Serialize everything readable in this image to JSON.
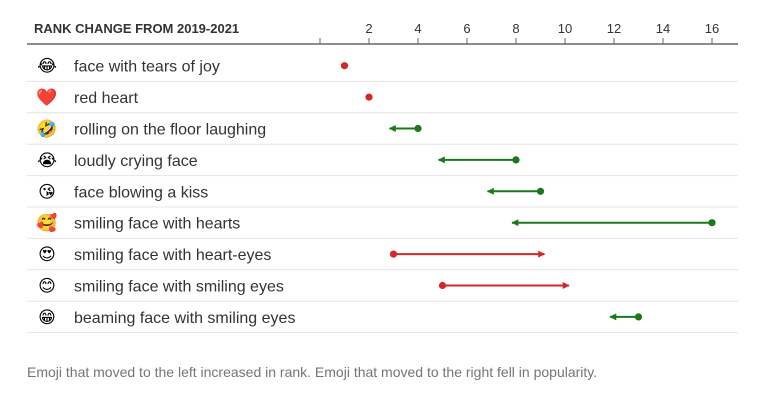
{
  "chart_data": {
    "type": "dumbbell",
    "title": "RANK CHANGE FROM 2019-2021",
    "x_ticks": [
      2,
      4,
      6,
      8,
      10,
      12,
      14,
      16
    ],
    "xlim": [
      0,
      16
    ],
    "grid": false,
    "colors": {
      "increase": "#1a7a1a",
      "decrease": "#d62728"
    },
    "rows": [
      {
        "emoji": "😂",
        "icon": "face-with-tears-of-joy-icon",
        "label": "face with tears of joy",
        "from": 1,
        "to": 1
      },
      {
        "emoji": "❤️",
        "icon": "red-heart-icon",
        "label": "red heart",
        "from": 2,
        "to": 2
      },
      {
        "emoji": "🤣",
        "icon": "rolling-on-the-floor-laughing-icon",
        "label": "rolling on the floor laughing",
        "from": 4,
        "to": 3
      },
      {
        "emoji": "😭",
        "icon": "loudly-crying-face-icon",
        "label": "loudly crying face",
        "from": 8,
        "to": 5
      },
      {
        "emoji": "😘",
        "icon": "face-blowing-a-kiss-icon",
        "label": "face blowing a kiss",
        "from": 9,
        "to": 7
      },
      {
        "emoji": "🥰",
        "icon": "smiling-face-with-hearts-icon",
        "label": "smiling face with hearts",
        "from": 16,
        "to": 8
      },
      {
        "emoji": "😍",
        "icon": "smiling-face-with-heart-eyes-icon",
        "label": "smiling face with heart-eyes",
        "from": 3,
        "to": 9
      },
      {
        "emoji": "😊",
        "icon": "smiling-face-with-smiling-eyes-icon",
        "label": "smiling face with smiling eyes",
        "from": 5,
        "to": 10
      },
      {
        "emoji": "😁",
        "icon": "beaming-face-with-smiling-eyes-icon",
        "label": "beaming face with smiling eyes",
        "from": 13,
        "to": 12
      }
    ]
  },
  "footnote": "Emoji that moved to the left increased in rank. Emoji that moved to the right fell in popularity."
}
